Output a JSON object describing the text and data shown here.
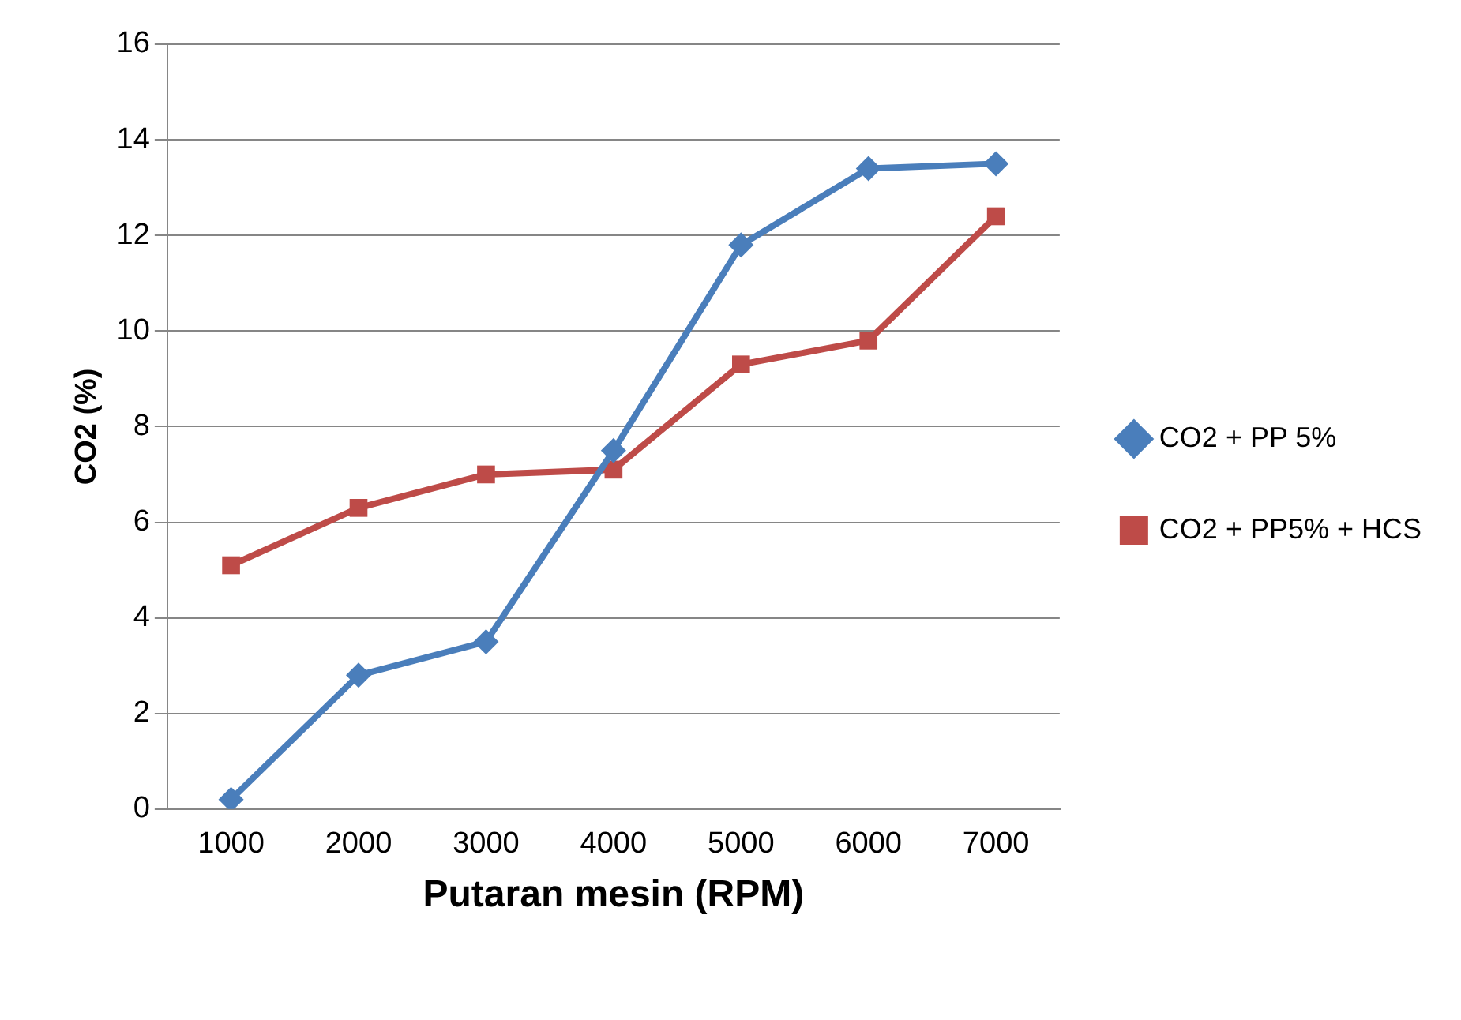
{
  "chart_data": {
    "type": "line",
    "xlabel": "Putaran mesin (RPM)",
    "ylabel": "CO2 (%)",
    "categories": [
      "1000",
      "2000",
      "3000",
      "4000",
      "5000",
      "6000",
      "7000"
    ],
    "series": [
      {
        "name": "CO2 + PP 5%",
        "color": "#4a7ebb",
        "marker": "diamond",
        "values": [
          0.2,
          2.8,
          3.5,
          7.5,
          11.8,
          13.4,
          13.5
        ]
      },
      {
        "name": "CO2 + PP5% + HCS",
        "color": "#be4b48",
        "marker": "square",
        "values": [
          5.1,
          6.3,
          7.0,
          7.1,
          9.3,
          9.8,
          12.4
        ]
      }
    ],
    "ylim": [
      0,
      16
    ],
    "yticks": [
      0,
      2,
      4,
      6,
      8,
      10,
      12,
      14,
      16
    ],
    "grid": "y",
    "legend": "right",
    "line_style": "solid"
  }
}
